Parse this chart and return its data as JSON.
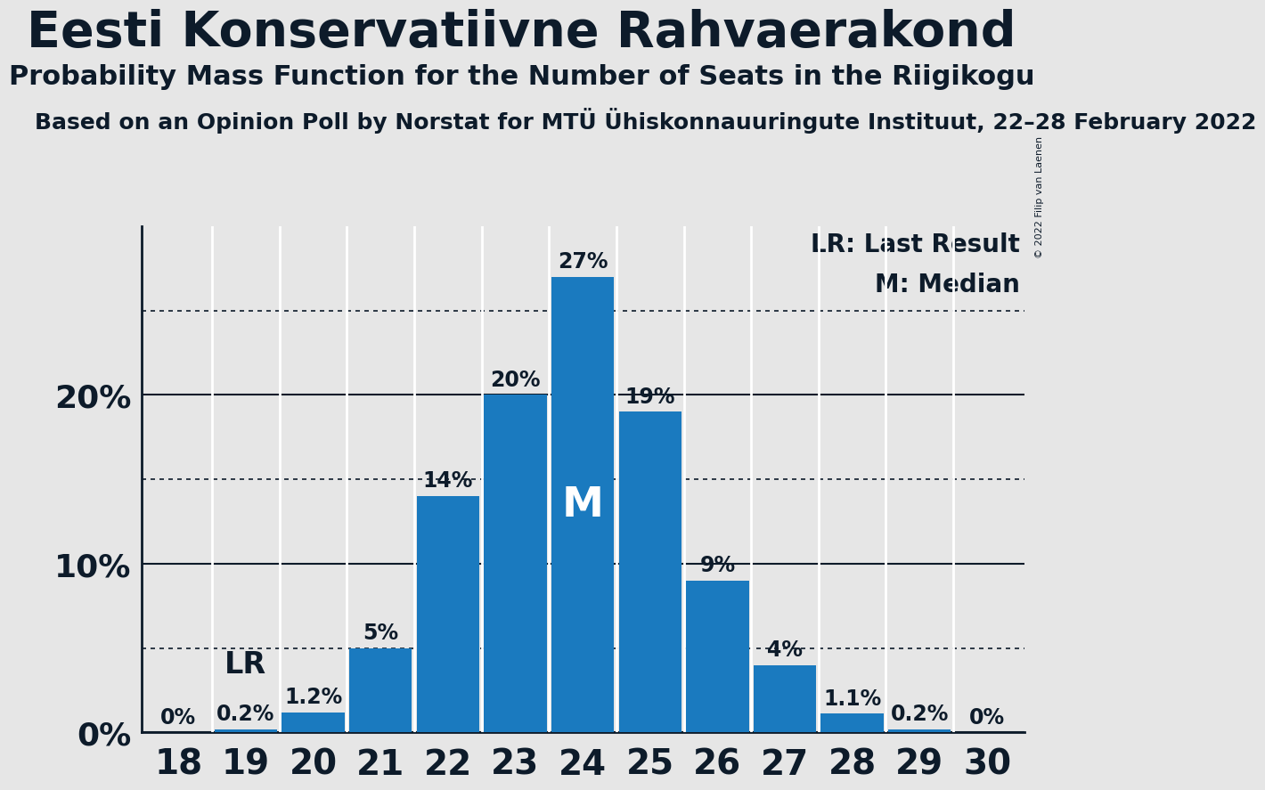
{
  "title": "Eesti Konservatiivne Rahvaerakond",
  "subtitle": "Probability Mass Function for the Number of Seats in the Riigikogu",
  "source_line": "Based on an Opinion Poll by Norstat for MTÜ Ühiskonnauuringute Instituut, 22–28 February 2022",
  "copyright": "© 2022 Filip van Laenen",
  "seats": [
    18,
    19,
    20,
    21,
    22,
    23,
    24,
    25,
    26,
    27,
    28,
    29,
    30
  ],
  "probabilities": [
    0.0,
    0.2,
    1.2,
    5.0,
    14.0,
    20.0,
    27.0,
    19.0,
    9.0,
    4.0,
    1.1,
    0.2,
    0.0
  ],
  "bar_color": "#1a7abf",
  "background_color": "#e6e6e6",
  "last_result_seat": 19,
  "median_seat": 24,
  "yticks_solid": [
    0,
    10,
    20
  ],
  "yticks_dotted": [
    5,
    15,
    25
  ],
  "ymax": 30,
  "legend_lr": "LR: Last Result",
  "legend_m": "M: Median",
  "title_fontsize": 40,
  "subtitle_fontsize": 22,
  "source_fontsize": 18,
  "ytick_fontsize": 26,
  "xtick_fontsize": 28,
  "bar_label_fontsize": 17,
  "legend_fontsize": 20,
  "lr_fontsize": 24,
  "m_fontsize": 28,
  "text_color": "#0d1b2a"
}
